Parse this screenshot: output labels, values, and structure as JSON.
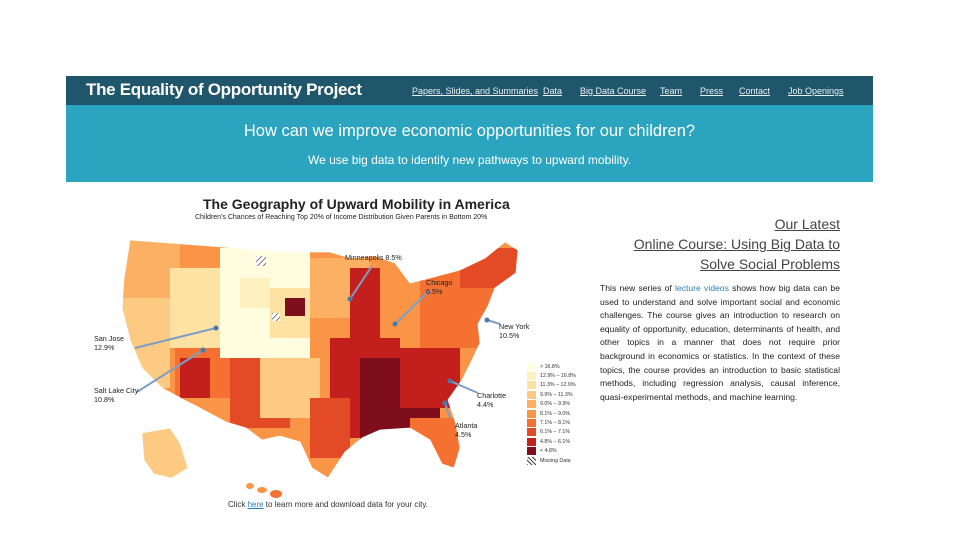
{
  "navbar": {
    "brand": "The Equality of Opportunity Project",
    "links": [
      "Papers, Slides, and Summaries",
      "Data",
      "Big Data Course",
      "Team",
      "Press",
      "Contact",
      "Job Openings"
    ]
  },
  "hero": {
    "title": "How can we improve economic opportunities for our children?",
    "subtitle": "We use big data to identify new pathways to upward mobility."
  },
  "map": {
    "title": "The Geography of Upward Mobility in America",
    "subtitle": "Children's Chances of Reaching Top 20% of Income Distribution Given Parents in Bottom 20%",
    "callouts": [
      {
        "city": "Minneapolis 8.5%",
        "value": ""
      },
      {
        "city": "Chicago",
        "value": "6.5%"
      },
      {
        "city": "San Jose",
        "value": "12.9%"
      },
      {
        "city": "New York",
        "value": "10.5%"
      },
      {
        "city": "Salt Lake City",
        "value": "10.8%"
      },
      {
        "city": "Charlotte",
        "value": "4.4%"
      },
      {
        "city": "Atlanta",
        "value": "4.5%"
      }
    ],
    "legend": [
      {
        "label": "> 16.8%",
        "color": "#fffde0"
      },
      {
        "label": "12.9% – 16.8%",
        "color": "#fdf1c0"
      },
      {
        "label": "11.3% – 12.9%",
        "color": "#fde2a3"
      },
      {
        "label": "9.9% – 11.3%",
        "color": "#fdca84"
      },
      {
        "label": "9.0% – 9.9%",
        "color": "#fcb063"
      },
      {
        "label": "8.1% – 9.0%",
        "color": "#fa9446"
      },
      {
        "label": "7.1% – 8.1%",
        "color": "#f47132"
      },
      {
        "label": "6.1% – 7.1%",
        "color": "#e34a26"
      },
      {
        "label": "4.8% – 6.1%",
        "color": "#c3201d"
      },
      {
        "label": "< 4.8%",
        "color": "#7f0e1d"
      },
      {
        "label": "Missing Data",
        "color": "#999999"
      }
    ],
    "footnote_before": "Click ",
    "footnote_link": "here",
    "footnote_after": " to learn more and download data for your city."
  },
  "sidebar": {
    "heading_line1": "Our Latest",
    "heading_line2": "Online Course: Using Big Data to",
    "heading_line3": "Solve Social Problems",
    "para_before": "This new series of ",
    "para_link": "lecture videos",
    "para_after": " shows how big data can be used to understand and solve important social and economic challenges. The course gives an introduction to research on equality of opportunity, education, determinants of health, and other topics in a manner that does not require prior background in economics or statistics. In the context of these topics, the course provides an introduction to basic statistical methods, including regression analysis, causal inference, quasi-experimental methods, and machine learning."
  }
}
